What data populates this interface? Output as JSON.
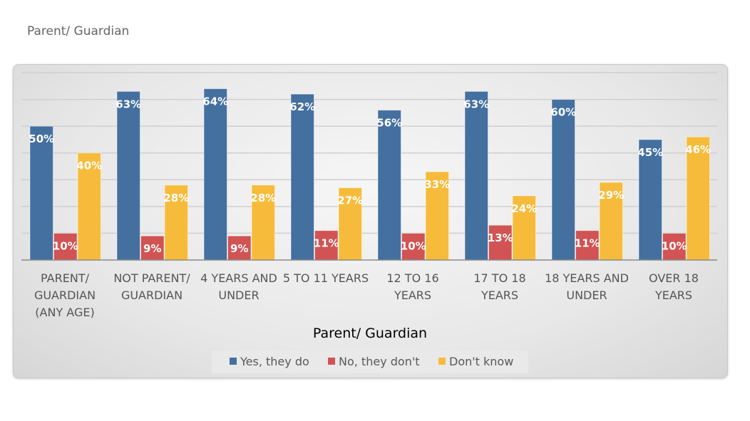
{
  "page_title": "Parent/ Guardian",
  "chart_data": {
    "type": "bar",
    "title": "",
    "xlabel": "Parent/ Guardian",
    "ylabel": "",
    "ylim": [
      0,
      70
    ],
    "grid": true,
    "legend_position": "bottom",
    "categories": [
      [
        "PARENT/",
        "GUARDIAN",
        "(ANY AGE)"
      ],
      [
        "NOT PARENT/",
        "GUARDIAN"
      ],
      [
        "4 YEARS AND",
        "UNDER"
      ],
      [
        "5 TO 11 YEARS"
      ],
      [
        "12 TO 16",
        "YEARS"
      ],
      [
        "17 TO 18",
        "YEARS"
      ],
      [
        "18 YEARS AND",
        "UNDER"
      ],
      [
        "OVER 18",
        "YEARS"
      ]
    ],
    "series": [
      {
        "name": "Yes, they do",
        "color": "#44709f",
        "values": [
          50,
          63,
          64,
          62,
          56,
          63,
          60,
          45
        ]
      },
      {
        "name": "No, they don't",
        "color": "#d15353",
        "values": [
          10,
          9,
          9,
          11,
          10,
          13,
          11,
          10
        ]
      },
      {
        "name": "Don't know",
        "color": "#f7bb3b",
        "values": [
          40,
          28,
          28,
          27,
          33,
          24,
          29,
          46
        ]
      }
    ]
  }
}
